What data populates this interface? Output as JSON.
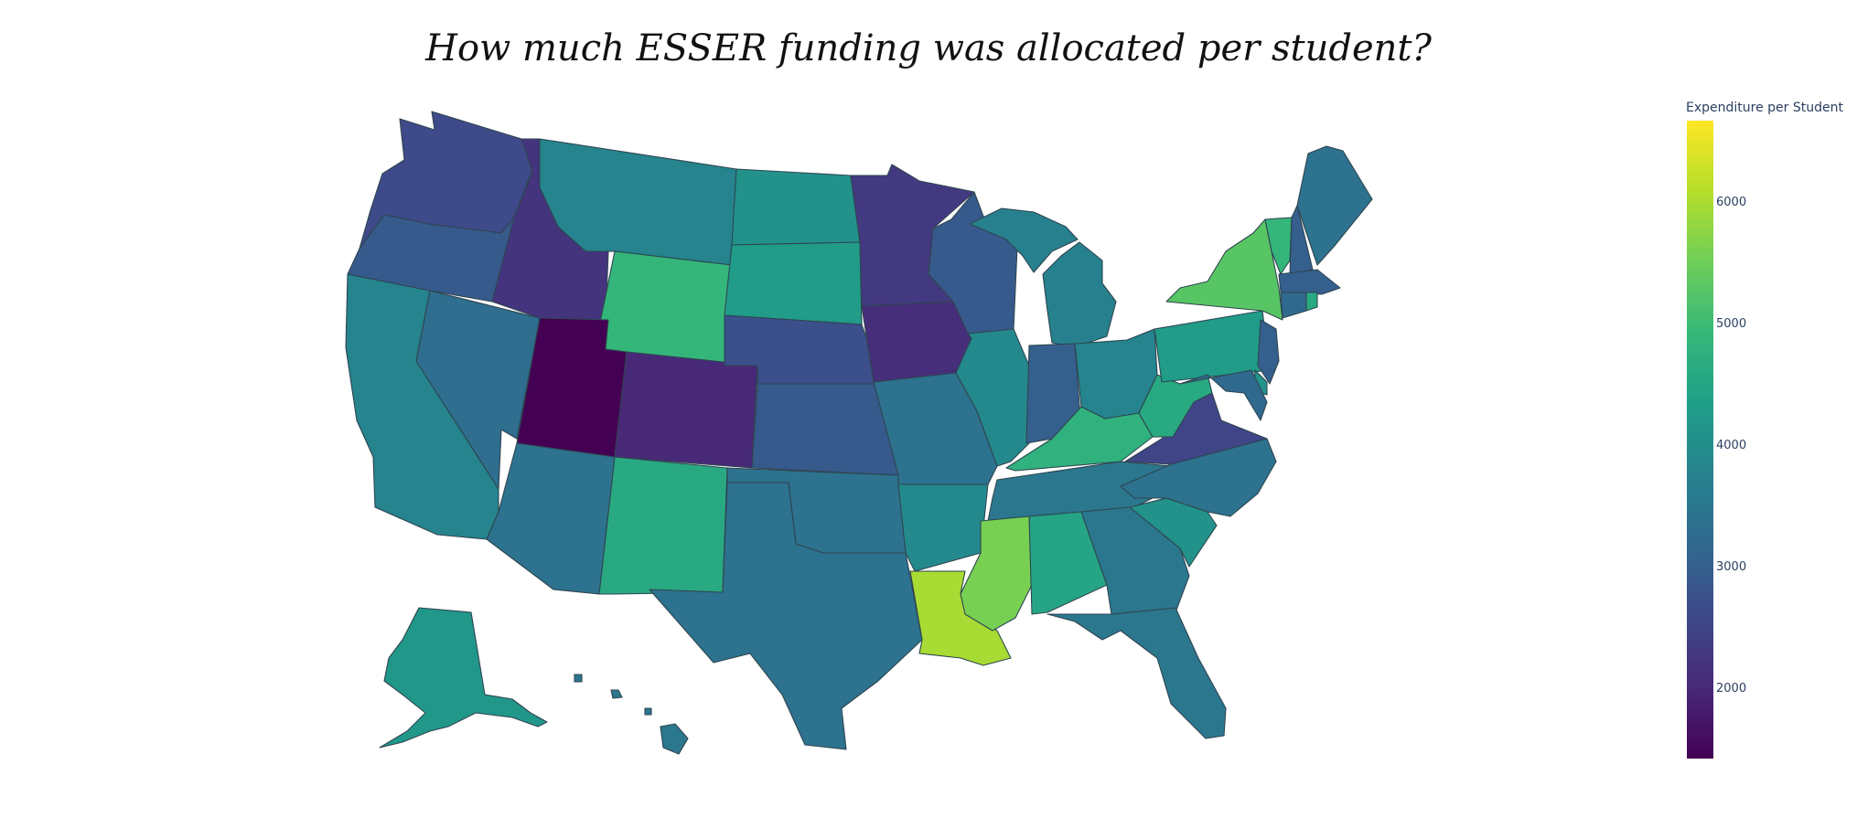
{
  "chart_data": {
    "type": "choropleth",
    "title": "How much ESSER funding was allocated per student?",
    "colorbar": {
      "title": "Expenditure per Student",
      "ticks": [
        "6000",
        "5000",
        "4000",
        "3000",
        "2000"
      ],
      "range": [
        1400,
        6700
      ],
      "colorscale": "viridis"
    },
    "states": [
      {
        "name": "WA",
        "value": 2600
      },
      {
        "name": "OR",
        "value": 2900
      },
      {
        "name": "CA",
        "value": 3800
      },
      {
        "name": "NV",
        "value": 3300
      },
      {
        "name": "ID",
        "value": 2200
      },
      {
        "name": "MT",
        "value": 3800
      },
      {
        "name": "WY",
        "value": 4900
      },
      {
        "name": "UT",
        "value": 1400
      },
      {
        "name": "AZ",
        "value": 3400
      },
      {
        "name": "CO",
        "value": 2000
      },
      {
        "name": "NM",
        "value": 4600
      },
      {
        "name": "ND",
        "value": 4100
      },
      {
        "name": "SD",
        "value": 4300
      },
      {
        "name": "NE",
        "value": 2700
      },
      {
        "name": "KS",
        "value": 2900
      },
      {
        "name": "OK",
        "value": 3400
      },
      {
        "name": "TX",
        "value": 3400
      },
      {
        "name": "MN",
        "value": 2300
      },
      {
        "name": "IA",
        "value": 2100
      },
      {
        "name": "MO",
        "value": 3400
      },
      {
        "name": "AR",
        "value": 3900
      },
      {
        "name": "LA",
        "value": 6000
      },
      {
        "name": "WI",
        "value": 2900
      },
      {
        "name": "IL",
        "value": 3900
      },
      {
        "name": "MI",
        "value": 3700
      },
      {
        "name": "IN",
        "value": 3000
      },
      {
        "name": "OH",
        "value": 3800
      },
      {
        "name": "KY",
        "value": 4800
      },
      {
        "name": "TN",
        "value": 3500
      },
      {
        "name": "MS",
        "value": 5600
      },
      {
        "name": "AL",
        "value": 4500
      },
      {
        "name": "GA",
        "value": 3500
      },
      {
        "name": "FL",
        "value": 3500
      },
      {
        "name": "SC",
        "value": 4100
      },
      {
        "name": "NC",
        "value": 3400
      },
      {
        "name": "VA",
        "value": 2500
      },
      {
        "name": "WV",
        "value": 4600
      },
      {
        "name": "PA",
        "value": 4300
      },
      {
        "name": "NY",
        "value": 5300
      },
      {
        "name": "VT",
        "value": 4900
      },
      {
        "name": "NH",
        "value": 3000
      },
      {
        "name": "ME",
        "value": 3400
      },
      {
        "name": "MA",
        "value": 3000
      },
      {
        "name": "CT",
        "value": 3200
      },
      {
        "name": "RI",
        "value": 4600
      },
      {
        "name": "NJ",
        "value": 3000
      },
      {
        "name": "DE",
        "value": 4100
      },
      {
        "name": "MD",
        "value": 3200
      },
      {
        "name": "AK",
        "value": 4200
      },
      {
        "name": "HI",
        "value": 3500
      }
    ]
  }
}
